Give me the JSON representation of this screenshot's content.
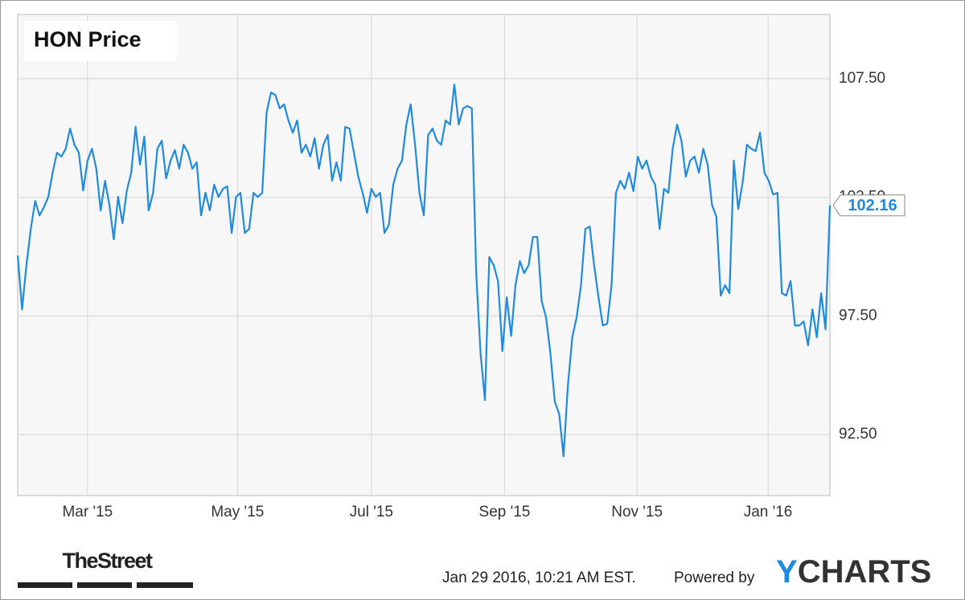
{
  "chart_data": {
    "type": "line",
    "title": "HON Price",
    "series": [
      {
        "name": "HON",
        "color": "#1e8be0",
        "values": [
          100.05,
          97.78,
          99.64,
          101.17,
          102.35,
          101.74,
          102.08,
          102.52,
          103.54,
          104.38,
          104.22,
          104.55,
          105.4,
          104.72,
          104.38,
          102.79,
          104.05,
          104.55,
          103.71,
          101.95,
          103.2,
          102.18,
          100.73,
          102.52,
          101.41,
          102.79,
          103.54,
          105.47,
          103.88,
          105.06,
          101.95,
          102.69,
          104.55,
          104.89,
          103.3,
          104.05,
          104.49,
          103.71,
          104.72,
          104.38,
          103.71,
          103.98,
          101.74,
          102.69,
          101.95,
          103.03,
          102.52,
          102.86,
          102.96,
          101.0,
          102.52,
          102.69,
          101.0,
          101.17,
          102.69,
          102.52,
          102.69,
          106.08,
          106.92,
          106.82,
          106.25,
          106.42,
          105.74,
          105.23,
          105.74,
          104.38,
          104.72,
          104.22,
          104.99,
          103.71,
          104.72,
          105.13,
          103.2,
          103.98,
          103.2,
          105.47,
          105.4,
          104.38,
          103.37,
          102.69,
          101.85,
          102.86,
          102.52,
          102.69,
          101.0,
          101.34,
          103.03,
          103.71,
          104.05,
          105.57,
          106.42,
          104.72,
          102.69,
          101.74,
          105.13,
          105.4,
          104.89,
          104.72,
          105.74,
          105.57,
          107.26,
          105.57,
          106.25,
          106.35,
          106.25,
          99.31,
          95.92,
          93.96,
          99.98,
          99.64,
          98.97,
          96.02,
          98.29,
          96.66,
          98.8,
          99.81,
          99.31,
          99.64,
          100.83,
          100.83,
          98.12,
          97.44,
          95.92,
          93.89,
          93.38,
          91.59,
          94.57,
          96.6,
          97.44,
          98.8,
          101.17,
          101.27,
          99.64,
          98.29,
          97.1,
          97.17,
          98.8,
          102.69,
          103.2,
          102.86,
          103.54,
          102.76,
          104.22,
          103.71,
          104.05,
          103.37,
          103.03,
          101.17,
          102.86,
          102.69,
          104.55,
          105.57,
          104.89,
          103.37,
          104.05,
          104.22,
          103.54,
          104.55,
          103.88,
          102.18,
          101.68,
          98.36,
          98.8,
          98.46,
          104.05,
          102.01,
          103.1,
          104.72,
          104.55,
          104.45,
          105.23,
          103.54,
          103.2,
          102.62,
          102.69,
          98.46,
          98.36,
          98.97,
          97.1,
          97.1,
          97.27,
          96.26,
          97.78,
          96.6,
          98.46,
          96.94,
          102.16
        ]
      }
    ],
    "xlim": [
      0,
      186
    ],
    "xticks": [
      {
        "value": 16,
        "label": "Mar '15"
      },
      {
        "value": 50.33,
        "label": "May '15"
      },
      {
        "value": 81,
        "label": "Jul '15"
      },
      {
        "value": 111.5,
        "label": "Sep '15"
      },
      {
        "value": 141.83,
        "label": "Nov '15"
      },
      {
        "value": 171.83,
        "label": "Jan '16"
      }
    ],
    "ylim": [
      89.93,
      110.21
    ],
    "yticks": [
      {
        "value": 92.5,
        "label": "92.50"
      },
      {
        "value": 97.5,
        "label": "97.50"
      },
      {
        "value": 102.5,
        "label": "102.50"
      },
      {
        "value": 107.5,
        "label": "107.50"
      }
    ],
    "grid": true,
    "timestamp": "Jan 29 2016, 10:21 AM EST.",
    "powered_by": "Powered by",
    "brand": "YCHARTS",
    "publisher": "TheStreet"
  }
}
